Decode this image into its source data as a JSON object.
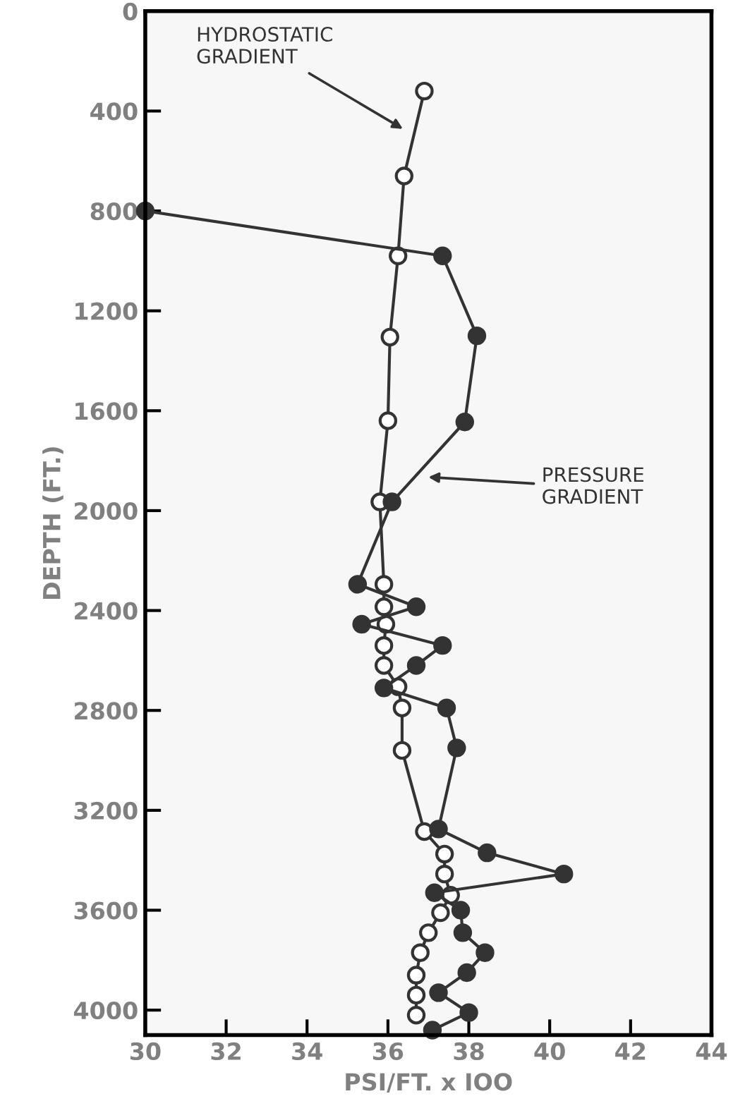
{
  "chart_data": {
    "type": "line",
    "xlabel": "PSI/FT. x IOO",
    "ylabel": "DEPTH (FT.)",
    "xlim": [
      30,
      44
    ],
    "xticks": [
      30,
      32,
      34,
      36,
      38,
      40,
      42,
      44
    ],
    "ylim": [
      4100,
      0
    ],
    "yticks": [
      0,
      400,
      800,
      1200,
      1600,
      2000,
      2400,
      2800,
      3200,
      3600,
      4000
    ],
    "grid": false,
    "legend": false,
    "marker": "circle",
    "line_style": "solid",
    "annotations": [
      "HYDROSTATIC\nGRADIENT",
      "PRESSURE\nGRADIENT"
    ],
    "series": [
      {
        "color": "#ffffff",
        "x": [
          36.9,
          36.4,
          36.25,
          36.05,
          36.0,
          35.8,
          35.9,
          35.9,
          35.95,
          35.9,
          35.9,
          36.25,
          36.35,
          36.35,
          36.9,
          37.4,
          37.4,
          37.55,
          37.3,
          37.0,
          36.8,
          36.7,
          36.7,
          36.7
        ],
        "values": [
          320,
          660,
          980,
          1305,
          1640,
          1965,
          2295,
          2385,
          2455,
          2540,
          2620,
          2705,
          2790,
          2960,
          3285,
          3375,
          3455,
          3540,
          3610,
          3690,
          3770,
          3860,
          3940,
          4020
        ]
      },
      {
        "color": "#333333",
        "x": [
          30,
          37.35,
          38.2,
          37.9,
          36.1,
          35.25,
          36.7,
          35.35,
          37.35,
          36.7,
          35.9,
          37.45,
          37.7,
          37.25,
          38.45,
          40.35,
          37.15,
          37.8,
          37.85,
          38.4,
          37.95,
          37.25,
          38.0,
          37.1
        ],
        "values": [
          800,
          980,
          1300,
          1645,
          1965,
          2295,
          2385,
          2455,
          2540,
          2620,
          2710,
          2790,
          2950,
          3275,
          3370,
          3455,
          3530,
          3600,
          3690,
          3770,
          3850,
          3930,
          4010,
          4080
        ]
      }
    ]
  }
}
